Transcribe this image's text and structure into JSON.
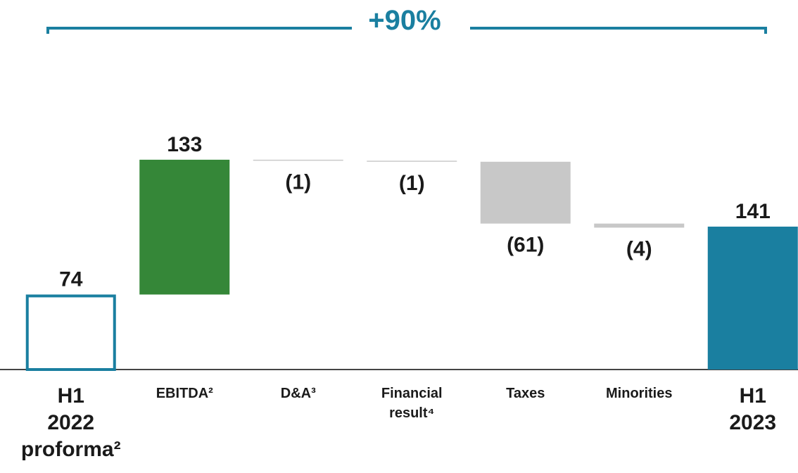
{
  "chart_data": {
    "type": "waterfall",
    "annotation": "+90%",
    "categories": [
      "H1 2022 proforma²",
      "EBITDA²",
      "D&A³",
      "Financial result⁴",
      "Taxes",
      "Minorities",
      "H1 2023"
    ],
    "values": [
      74,
      133,
      -1,
      -1,
      -61,
      -4,
      141
    ],
    "value_labels": [
      "74",
      "133",
      "(1)",
      "(1)",
      "(61)",
      "(4)",
      "141"
    ],
    "measures": [
      "absolute",
      "relative",
      "relative",
      "relative",
      "relative",
      "relative",
      "total"
    ],
    "colors": [
      "#1a7fa0",
      "#358738",
      "#c8c8c8",
      "#c8c8c8",
      "#c8c8c8",
      "#c8c8c8",
      "#1a7fa0"
    ],
    "filled": [
      false,
      true,
      true,
      true,
      true,
      true,
      true
    ],
    "ylim": [
      0,
      250
    ]
  }
}
